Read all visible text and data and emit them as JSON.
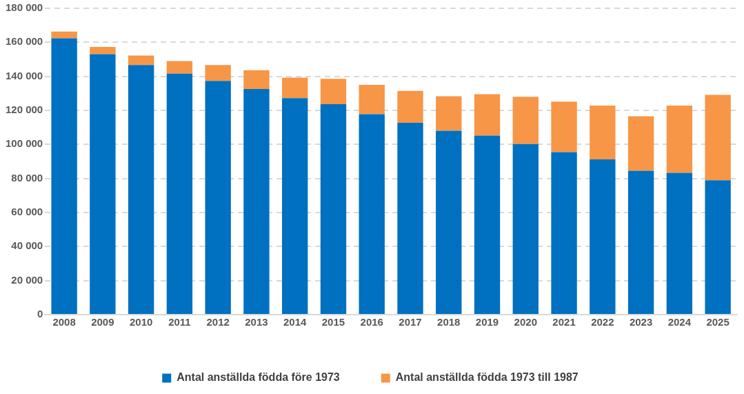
{
  "chart_data": {
    "type": "bar",
    "stacked": true,
    "categories": [
      "2008",
      "2009",
      "2010",
      "2011",
      "2012",
      "2013",
      "2014",
      "2015",
      "2016",
      "2017",
      "2018",
      "2019",
      "2020",
      "2021",
      "2022",
      "2023",
      "2024",
      "2025"
    ],
    "series": [
      {
        "name": "Antal anställda födda före 1973",
        "color": "#0070c0",
        "values": [
          162400,
          153000,
          146700,
          141600,
          137300,
          132600,
          127200,
          123600,
          117800,
          112700,
          108000,
          105200,
          100200,
          95500,
          91200,
          84500,
          83300,
          79000
        ]
      },
      {
        "name": "Antal anställda födda 1973 till 1987",
        "color": "#f79646",
        "values": [
          3900,
          4300,
          5500,
          7400,
          9400,
          11000,
          12100,
          14900,
          17200,
          18800,
          20300,
          24300,
          27800,
          29700,
          31600,
          32100,
          39500,
          50100
        ]
      }
    ],
    "ylim": [
      0,
      180000
    ],
    "yticks": [
      {
        "value": 0,
        "label": "0"
      },
      {
        "value": 20000,
        "label": "20 000"
      },
      {
        "value": 40000,
        "label": "40 000"
      },
      {
        "value": 60000,
        "label": "60 000"
      },
      {
        "value": 80000,
        "label": "80 000"
      },
      {
        "value": 100000,
        "label": "100 000"
      },
      {
        "value": 120000,
        "label": "120 000"
      },
      {
        "value": 140000,
        "label": "140 000"
      },
      {
        "value": 160000,
        "label": "160 000"
      },
      {
        "value": 180000,
        "label": "180 000"
      }
    ],
    "grid": "y",
    "legend": "bottom"
  }
}
